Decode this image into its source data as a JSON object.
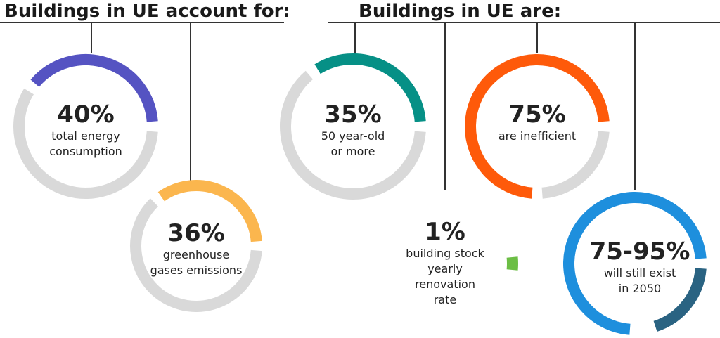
{
  "headings": {
    "left": "Buildings in UE account for:",
    "right": "Buildings in UE are:"
  },
  "colors": {
    "track": "#d9d9d9",
    "energy": "#5553c2",
    "emissions": "#fbb64e",
    "old": "#069086",
    "inefficient": "#fe5a0a",
    "renovation": "#6cbe45",
    "exist": "#1e8fdd",
    "exist_secondary": "#2a6382"
  },
  "chart_data": [
    {
      "type": "pie",
      "id": "energy",
      "value_pct": 40,
      "label": "40%",
      "description": "total energy\nconsumption",
      "color": "#5553c2"
    },
    {
      "type": "pie",
      "id": "emissions",
      "value_pct": 36,
      "label": "36%",
      "description": "greenhouse\ngases emissions",
      "color": "#fbb64e"
    },
    {
      "type": "pie",
      "id": "old",
      "value_pct": 35,
      "label": "35%",
      "description": "50 year-old\nor more",
      "color": "#069086"
    },
    {
      "type": "pie",
      "id": "inefficient",
      "value_pct": 75,
      "label": "75%",
      "description": "are inefficient",
      "color": "#fe5a0a"
    },
    {
      "type": "pie",
      "id": "renovation",
      "value_pct": 1,
      "label": "1%",
      "description": "building stock\nyearly\nrenovation\nrate",
      "color": "#6cbe45"
    },
    {
      "type": "pie",
      "id": "exist",
      "value_pct": 75,
      "value_pct_upper": 95,
      "label": "75-95%",
      "description": "will still exist\nin 2050",
      "color": "#1e8fdd",
      "color_upper": "#2a6382"
    }
  ]
}
